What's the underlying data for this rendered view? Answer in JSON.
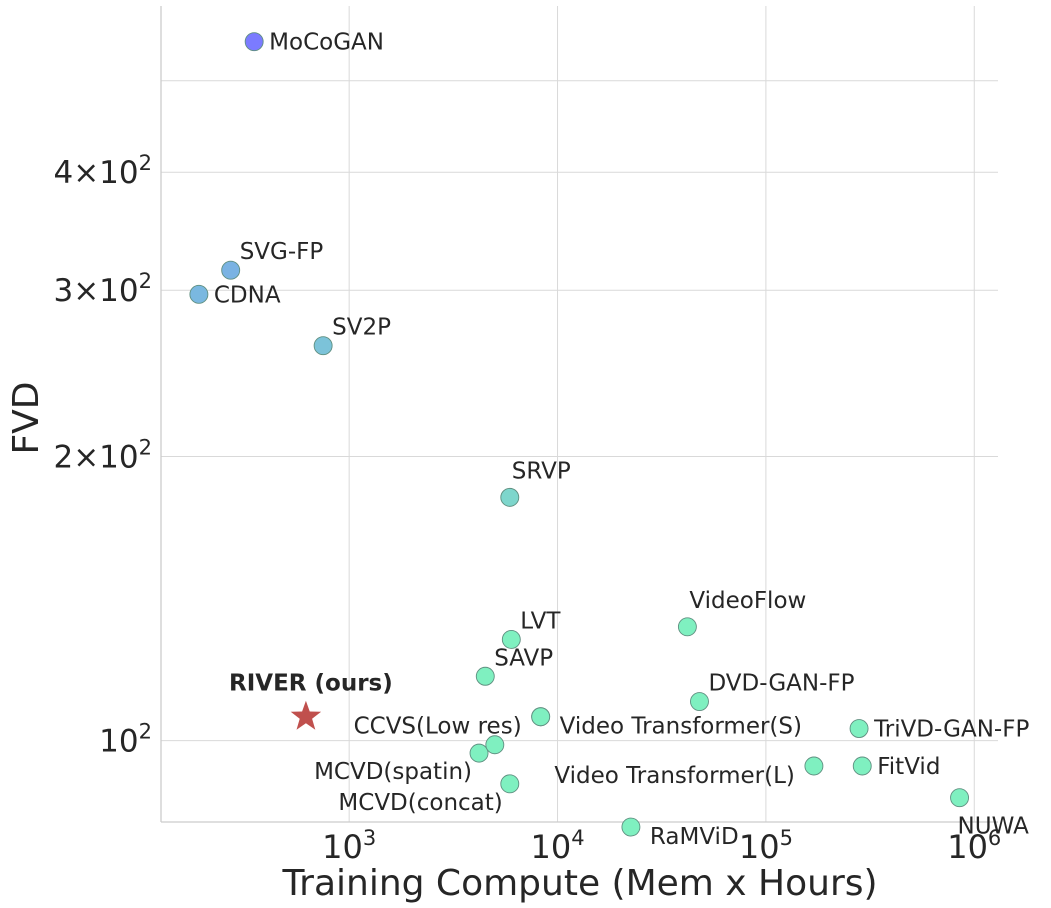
{
  "chart_data": {
    "type": "scatter",
    "title": "",
    "xlabel": "Training Compute (Mem x Hours)",
    "ylabel": "FVD",
    "x_scale": "log",
    "y_scale": "log",
    "xlim": [
      125,
      1300000
    ],
    "ylim": [
      82,
      600
    ],
    "x_ticks": [
      {
        "value": 1000,
        "base": "10",
        "exp": "3"
      },
      {
        "value": 10000,
        "base": "10",
        "exp": "4"
      },
      {
        "value": 100000,
        "base": "10",
        "exp": "5"
      },
      {
        "value": 1000000,
        "base": "10",
        "exp": "6"
      }
    ],
    "y_ticks": [
      {
        "value": 100,
        "base": "10",
        "exp": "2",
        "coef": ""
      },
      {
        "value": 200,
        "base": "10",
        "exp": "2",
        "coef": "2"
      },
      {
        "value": 300,
        "base": "10",
        "exp": "2",
        "coef": "3"
      },
      {
        "value": 400,
        "base": "10",
        "exp": "2",
        "coef": "4"
      }
    ],
    "grid": true,
    "points": [
      {
        "label": "MoCoGAN",
        "x": 350,
        "y": 550,
        "color": "#7b7bff",
        "label_pos": "right"
      },
      {
        "label": "SVG-FP",
        "x": 270,
        "y": 315,
        "color": "#7ab3e3",
        "label_pos": "upper-right"
      },
      {
        "label": "CDNA",
        "x": 190,
        "y": 297,
        "color": "#7ab8e0",
        "label_pos": "right"
      },
      {
        "label": "SV2P",
        "x": 750,
        "y": 262,
        "color": "#7cc3d9",
        "label_pos": "upper-right"
      },
      {
        "label": "SRVP",
        "x": 5900,
        "y": 181,
        "color": "#7ed6cc",
        "label_pos": "above"
      },
      {
        "label": "LVT",
        "x": 6000,
        "y": 128,
        "color": "#7ff0c0",
        "label_pos": "upper-right"
      },
      {
        "label": "SAVP",
        "x": 4500,
        "y": 117,
        "color": "#7ff0c0",
        "label_pos": "upper-right"
      },
      {
        "label": "VideoFlow",
        "x": 42000,
        "y": 132,
        "color": "#7ff0c0",
        "label_pos": "above"
      },
      {
        "label": "DVD-GAN-FP",
        "x": 48000,
        "y": 110,
        "color": "#7ff0c0",
        "label_pos": "upper-right"
      },
      {
        "label": "CCVS(Low res)",
        "x": 8300,
        "y": 106,
        "color": "#7ff0c0",
        "label_pos": "left"
      },
      {
        "label": "Video Transformer(S)",
        "x": 8300,
        "y": 106,
        "color": "#7ff0c0",
        "label_pos": "below-right"
      },
      {
        "label": "TriVD-GAN-FP",
        "x": 280000,
        "y": 103,
        "color": "#7ff0c0",
        "label_pos": "right"
      },
      {
        "label": "MCVD(spatin)",
        "x": 4200,
        "y": 97,
        "color": "#7ff0c0",
        "label_pos": "below-left"
      },
      {
        "label": "",
        "x": 5000,
        "y": 99,
        "color": "#7ff0c0",
        "label_pos": "none"
      },
      {
        "label": "Video Transformer(L)",
        "x": 170000,
        "y": 94,
        "color": "#7ff0c0",
        "label_pos": "left"
      },
      {
        "label": "FitVid",
        "x": 290000,
        "y": 94,
        "color": "#7ff0c0",
        "label_pos": "right"
      },
      {
        "label": "MCVD(concat)",
        "x": 5900,
        "y": 90,
        "color": "#7ff0c0",
        "label_pos": "below-left"
      },
      {
        "label": "NUWA",
        "x": 850000,
        "y": 87,
        "color": "#7ff0c0",
        "label_pos": "below"
      },
      {
        "label": "RaMViD",
        "x": 22500,
        "y": 81,
        "color": "#7ff0c0",
        "label_pos": "below-right"
      }
    ],
    "highlight": {
      "label": "RIVER (ours)",
      "x": 620,
      "y": 106,
      "color": "#c0504d",
      "marker": "star"
    }
  }
}
